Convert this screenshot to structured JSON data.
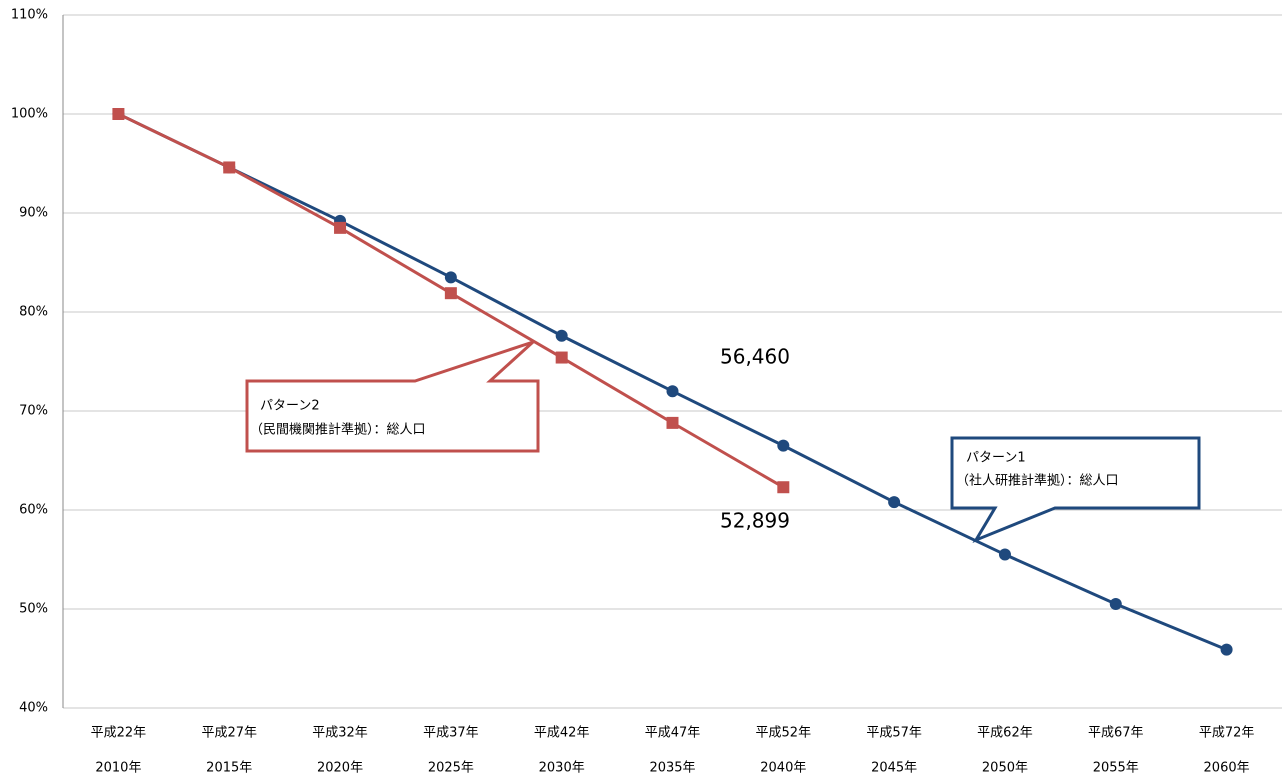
{
  "chart_data": {
    "type": "line",
    "categories": [
      "平成22年",
      "平成27年",
      "平成32年",
      "平成37年",
      "平成42年",
      "平成47年",
      "平成52年",
      "平成57年",
      "平成62年",
      "平成67年",
      "平成72年"
    ],
    "categories_western": [
      "2010年",
      "2015年",
      "2020年",
      "2025年",
      "2030年",
      "2035年",
      "2040年",
      "2045年",
      "2050年",
      "2055年",
      "2060年"
    ],
    "series": [
      {
        "name": "パターン1",
        "description": "（社人研推計準拠）：総人口",
        "color": "#1f497d",
        "marker": "circle",
        "values": [
          100,
          94.6,
          89.2,
          83.5,
          77.6,
          72.0,
          66.5,
          60.8,
          55.5,
          50.5,
          45.9
        ]
      },
      {
        "name": "パターン2",
        "description": "（民間機関推計準拠）：総人口",
        "color": "#c0504d",
        "marker": "square",
        "values": [
          100,
          94.6,
          88.5,
          81.9,
          75.4,
          68.8,
          62.3,
          null,
          null,
          null,
          null
        ]
      }
    ],
    "annotations": [
      "56,460",
      "52,899"
    ],
    "ylim": [
      40,
      110
    ],
    "yticks": [
      {
        "value": 40,
        "label": "40%"
      },
      {
        "value": 50,
        "label": "50%"
      },
      {
        "value": 60,
        "label": "60%"
      },
      {
        "value": 70,
        "label": "70%"
      },
      {
        "value": 80,
        "label": "80%"
      },
      {
        "value": 90,
        "label": "90%"
      },
      {
        "value": 100,
        "label": "100%"
      },
      {
        "value": 110,
        "label": "110%"
      }
    ],
    "grid": true
  }
}
